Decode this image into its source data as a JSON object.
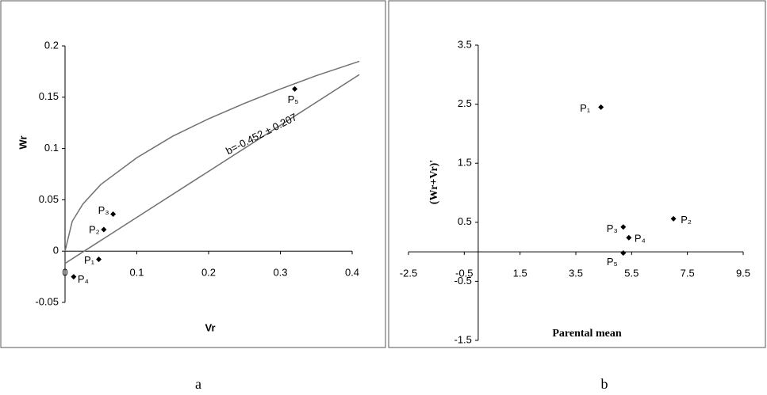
{
  "chart_data": [
    {
      "type": "scatter",
      "panel_label": "a",
      "x_label": "Vr",
      "y_label": "Wr",
      "xlim": [
        0,
        0.4
      ],
      "ylim": [
        -0.05,
        0.2
      ],
      "xticks": [
        0,
        0.1,
        0.2,
        0.3,
        0.4
      ],
      "yticks": [
        -0.05,
        0,
        0.05,
        0.1,
        0.15,
        0.2
      ],
      "points": {
        "labels": [
          "P₁",
          "P₂",
          "P₃",
          "P₄",
          "P₅"
        ],
        "x": [
          0.047,
          0.054,
          0.067,
          0.012,
          0.32
        ],
        "y": [
          -0.008,
          0.021,
          0.036,
          -0.025,
          0.158
        ],
        "color": "#000000"
      },
      "curves": [
        {
          "x": [
            0,
            0.01,
            0.025,
            0.05,
            0.1,
            0.15,
            0.2,
            0.25,
            0.3,
            0.35,
            0.41
          ],
          "y": [
            0,
            0.029,
            0.046,
            0.065,
            0.091,
            0.112,
            0.129,
            0.144,
            0.158,
            0.171,
            0.185
          ],
          "color": "#707070"
        },
        {
          "x": [
            0,
            0.41
          ],
          "y": [
            -0.012,
            0.172
          ],
          "color": "#707070"
        }
      ],
      "annotation": "b=-0.452 ± 0.207"
    },
    {
      "type": "scatter",
      "panel_label": "b",
      "x_label": "Parental mean",
      "y_label": "(Wr+Vr)'",
      "xlim": [
        -2.5,
        9.5
      ],
      "ylim": [
        -1.5,
        3.5
      ],
      "xticks": [
        -2.5,
        -0.5,
        1.5,
        3.5,
        5.5,
        7.5,
        9.5
      ],
      "yticks": [
        -1.5,
        -0.5,
        0.5,
        1.5,
        2.5,
        3.5
      ],
      "points": {
        "labels": [
          "P₁",
          "P₂",
          "P₃",
          "P₄",
          "P₅"
        ],
        "x": [
          4.4,
          7.0,
          5.2,
          5.4,
          5.2
        ],
        "y": [
          2.45,
          0.56,
          0.42,
          0.24,
          -0.02
        ],
        "color": "#000000"
      },
      "curves": []
    }
  ]
}
